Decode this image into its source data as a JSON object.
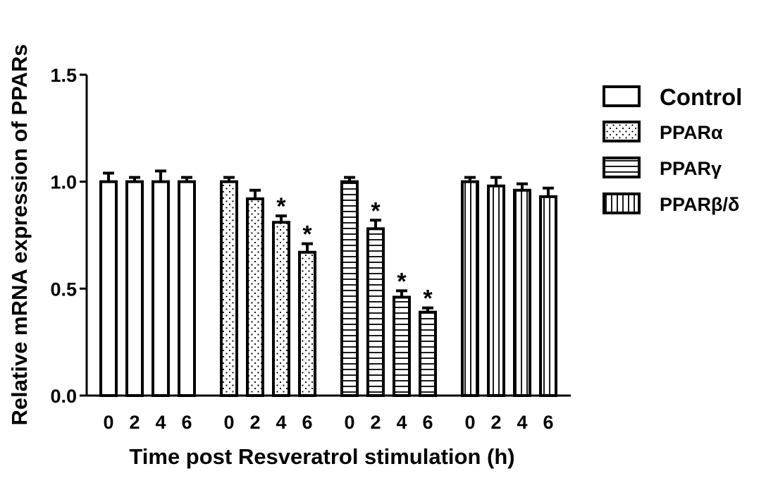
{
  "chart_data": {
    "type": "bar",
    "title": "",
    "xlabel": "Time post Resveratrol stimulation (h)",
    "ylabel": "Relative mRNA expression of PPARs",
    "ylim": [
      0,
      1.5
    ],
    "yticks": [
      "0.0",
      "0.5",
      "1.0",
      "1.5"
    ],
    "categories": [
      "0",
      "2",
      "4",
      "6"
    ],
    "legend_position": "right",
    "series": [
      {
        "name": "Control",
        "pattern": "blank",
        "values": [
          1.0,
          1.0,
          1.0,
          1.0
        ],
        "errors": [
          0.04,
          0.02,
          0.05,
          0.02
        ],
        "significant": [
          false,
          false,
          false,
          false
        ]
      },
      {
        "name": "PPARα",
        "pattern": "dots",
        "values": [
          1.0,
          0.92,
          0.81,
          0.67
        ],
        "errors": [
          0.02,
          0.04,
          0.03,
          0.04
        ],
        "significant": [
          false,
          false,
          true,
          true
        ]
      },
      {
        "name": "PPARγ",
        "pattern": "hlines",
        "values": [
          1.0,
          0.78,
          0.46,
          0.39
        ],
        "errors": [
          0.02,
          0.04,
          0.03,
          0.02
        ],
        "significant": [
          false,
          true,
          true,
          true
        ]
      },
      {
        "name": "PPARβ/δ",
        "pattern": "vlines",
        "values": [
          1.0,
          0.98,
          0.96,
          0.93
        ],
        "errors": [
          0.02,
          0.04,
          0.03,
          0.04
        ],
        "significant": [
          false,
          false,
          false,
          false
        ]
      }
    ],
    "significance_marker": "*",
    "colors": {
      "stroke": "#000000",
      "fill": "#ffffff"
    }
  }
}
